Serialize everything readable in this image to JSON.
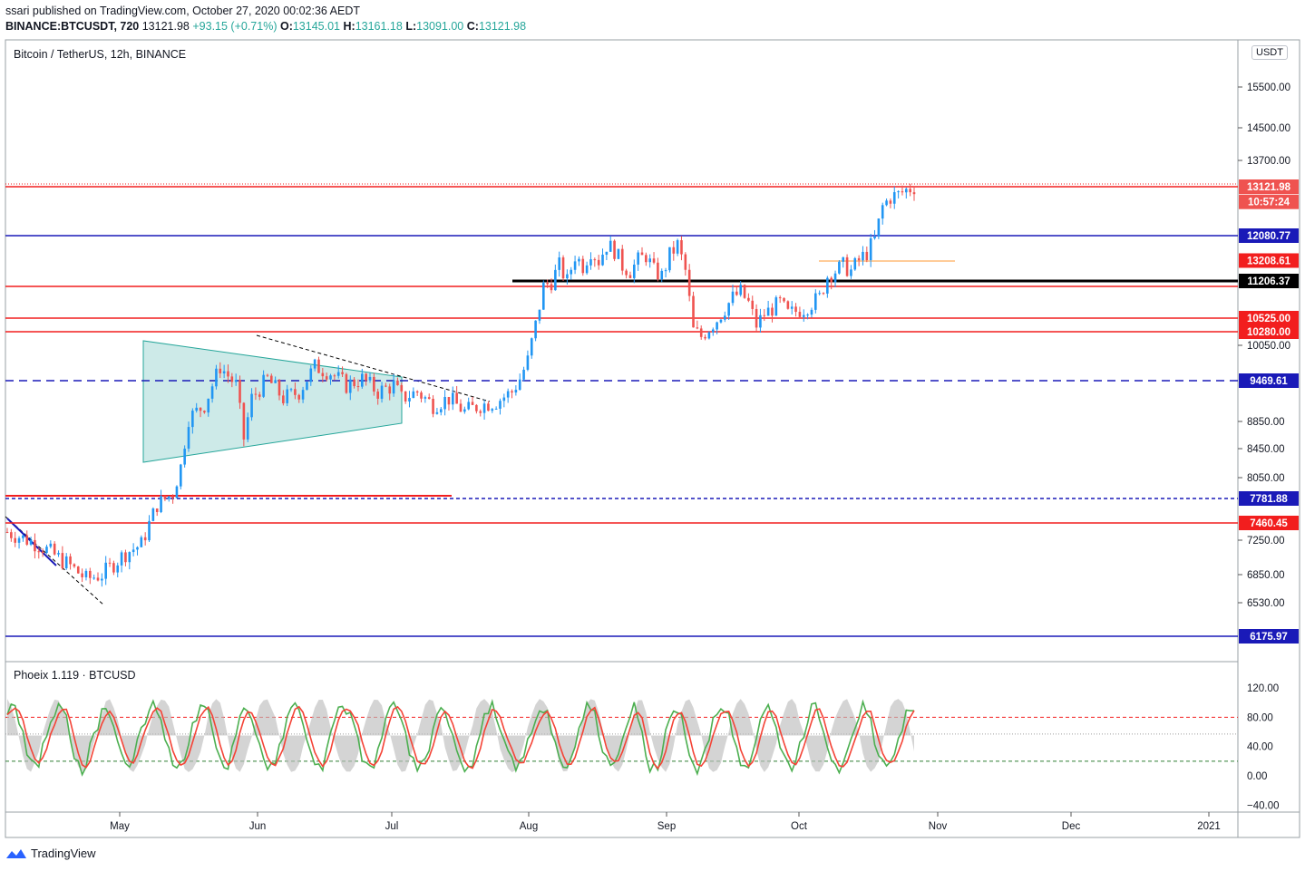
{
  "header": {
    "publisher_line": "ssari published on TradingView.com, October 27, 2020 00:02:36 AEDT",
    "symbol": "BINANCE:BTCUSDT, 720",
    "last": "13121.98",
    "change": "+93.15 (+0.71%)",
    "o_label": "O:",
    "o_value": "13145.01",
    "h_label": "H:",
    "h_value": "13161.18",
    "l_label": "L:",
    "l_value": "13091.00",
    "c_label": "C:",
    "c_value": "13121.98"
  },
  "main_legend": "Bitcoin / TetherUS, 12h, BINANCE",
  "indicator_legend": "Phoeix 1.119 · BTCUSD",
  "currency_badge": "USDT",
  "footer_brand": "TradingView",
  "colors": {
    "up": "#2196f3",
    "down": "#ef5350",
    "red_line": "#f21e1e",
    "blue_line": "#1a1ab8",
    "triangle_fill": "#b2dfdb",
    "osc_green": "#4caf50",
    "osc_red": "#f44336",
    "osc_gray": "#bdbdbd"
  },
  "chart_data": [
    {
      "type": "candlestick",
      "title": "Bitcoin / TetherUS, 12h, BINANCE",
      "ylim": [
        6000,
        16200
      ],
      "x_ticks": [
        "May",
        "Jun",
        "Jul",
        "Aug",
        "Sep",
        "Oct",
        "Nov",
        "Dec",
        "2021"
      ],
      "y_ticks": [
        15500,
        14500,
        13700,
        10050,
        8850,
        8450,
        8050,
        7250,
        6850,
        6530
      ],
      "y_tick_labels": [
        "15500.00",
        "14500.00",
        "13700.00",
        "10050.00",
        "8850.00",
        "8450.00",
        "8050.00",
        "7250.00",
        "6850.00",
        "6530.00"
      ],
      "horizontal_levels": [
        {
          "value": 13121.98,
          "label": "13121.98",
          "color": "#f21e1e",
          "style": "solid"
        },
        {
          "value": 12080.77,
          "label": "12080.77",
          "color": "#1a1ab8",
          "style": "solid"
        },
        {
          "value": 11206.37,
          "label": "11206.37",
          "color": "#000000",
          "style": "solid"
        },
        {
          "value": 10525.0,
          "label": "10525.00",
          "color": "#f21e1e",
          "style": "solid"
        },
        {
          "value": 10280.0,
          "label": "10280.00",
          "color": "#f21e1e",
          "style": "solid"
        },
        {
          "value": 9469.61,
          "label": "9469.61",
          "color": "#1a1ab8",
          "style": "dashed"
        },
        {
          "value": 7781.88,
          "label": "7781.88",
          "color": "#1a1ab8",
          "style": "dashed"
        },
        {
          "value": 7460.45,
          "label": "7460.45",
          "color": "#f21e1e",
          "style": "solid"
        },
        {
          "value": 6175.97,
          "label": "6175.97",
          "color": "#1a1ab8",
          "style": "solid"
        }
      ],
      "price_tags": [
        {
          "value": 13121.98,
          "label": "13121.98",
          "color": "#ef5350"
        },
        {
          "value": 12800,
          "label": "10:57:24",
          "color": "#ef5350"
        },
        {
          "value": 12080.77,
          "label": "12080.77",
          "color": "#1a1ab8"
        },
        {
          "value": 11600,
          "label": "13208.61",
          "color": "#f21e1e"
        },
        {
          "value": 11206.37,
          "label": "11206.37",
          "color": "#000000"
        },
        {
          "value": 10525.0,
          "label": "10525.00",
          "color": "#f21e1e"
        },
        {
          "value": 10280.0,
          "label": "10280.00",
          "color": "#f21e1e"
        },
        {
          "value": 9469.61,
          "label": "9469.61",
          "color": "#1a1ab8"
        },
        {
          "value": 7781.88,
          "label": "7781.88",
          "color": "#1a1ab8"
        },
        {
          "value": 7460.45,
          "label": "7460.45",
          "color": "#f21e1e"
        },
        {
          "value": 6175.97,
          "label": "6175.97",
          "color": "#1a1ab8"
        }
      ],
      "path_points": [
        [
          0,
          7350
        ],
        [
          8,
          7200
        ],
        [
          16,
          6950
        ],
        [
          20,
          6800
        ],
        [
          24,
          6850
        ],
        [
          30,
          7100
        ],
        [
          34,
          7200
        ],
        [
          38,
          7700
        ],
        [
          42,
          7850
        ],
        [
          44,
          8200
        ],
        [
          46,
          8900
        ],
        [
          50,
          9100
        ],
        [
          54,
          9700
        ],
        [
          58,
          9400
        ],
        [
          60,
          8600
        ],
        [
          62,
          9200
        ],
        [
          66,
          9500
        ],
        [
          70,
          9200
        ],
        [
          74,
          9300
        ],
        [
          78,
          9700
        ],
        [
          82,
          9600
        ],
        [
          86,
          9400
        ],
        [
          90,
          9500
        ],
        [
          94,
          9300
        ],
        [
          98,
          9400
        ],
        [
          100,
          9200
        ],
        [
          104,
          9300
        ],
        [
          108,
          9100
        ],
        [
          112,
          9200
        ],
        [
          116,
          9000
        ],
        [
          120,
          9100
        ],
        [
          124,
          9150
        ],
        [
          128,
          9300
        ],
        [
          130,
          9500
        ],
        [
          132,
          9800
        ],
        [
          134,
          10400
        ],
        [
          136,
          11100
        ],
        [
          138,
          11200
        ],
        [
          140,
          11500
        ],
        [
          142,
          11200
        ],
        [
          144,
          11700
        ],
        [
          146,
          11500
        ],
        [
          148,
          11800
        ],
        [
          150,
          11600
        ],
        [
          152,
          11900
        ],
        [
          154,
          11800
        ],
        [
          156,
          11500
        ],
        [
          158,
          11400
        ],
        [
          160,
          11600
        ],
        [
          162,
          11700
        ],
        [
          164,
          11400
        ],
        [
          166,
          11300
        ],
        [
          168,
          11700
        ],
        [
          170,
          11900
        ],
        [
          172,
          11400
        ],
        [
          174,
          10300
        ],
        [
          176,
          10200
        ],
        [
          178,
          10350
        ],
        [
          180,
          10500
        ],
        [
          182,
          10700
        ],
        [
          184,
          10900
        ],
        [
          186,
          11000
        ],
        [
          188,
          10800
        ],
        [
          190,
          10400
        ],
        [
          192,
          10600
        ],
        [
          194,
          10700
        ],
        [
          196,
          10800
        ],
        [
          198,
          10600
        ],
        [
          200,
          10650
        ],
        [
          202,
          10700
        ],
        [
          204,
          10800
        ],
        [
          206,
          10900
        ],
        [
          208,
          11300
        ],
        [
          210,
          11400
        ],
        [
          212,
          11500
        ],
        [
          214,
          11400
        ],
        [
          216,
          11600
        ],
        [
          218,
          11750
        ],
        [
          220,
          12000
        ],
        [
          222,
          12700
        ],
        [
          224,
          12900
        ],
        [
          226,
          12950
        ],
        [
          228,
          13050
        ],
        [
          230,
          13121.98
        ]
      ],
      "annotations": [
        {
          "type": "triangle",
          "label": "symmetrical triangle",
          "color": "#b2dfdb"
        },
        {
          "type": "trendline",
          "style": "dashed",
          "color": "#000000"
        },
        {
          "type": "horizontal_segment",
          "color": "#ffcc99"
        }
      ]
    },
    {
      "type": "line",
      "title": "Phoeix 1.119 · BTCUSD",
      "ylim": [
        -45,
        130
      ],
      "y_ticks": [
        120,
        80,
        40,
        0,
        -40
      ],
      "y_tick_labels": [
        "120.00",
        "80.00",
        "40.00",
        "0.00",
        "−40.00"
      ],
      "reference_levels": [
        {
          "value": 80,
          "color": "#f21e1e",
          "style": "dashed"
        },
        {
          "value": 20,
          "color": "#2e7d32",
          "style": "dashed"
        },
        {
          "value": 57,
          "color": "#9e9e9e",
          "style": "dotted"
        }
      ],
      "series": [
        {
          "color": "#4caf50",
          "values": []
        },
        {
          "color": "#f44336",
          "values": []
        }
      ]
    }
  ]
}
